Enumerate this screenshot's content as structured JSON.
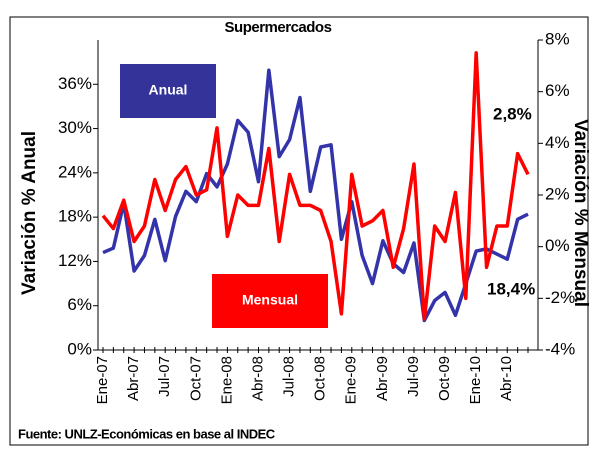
{
  "chart_data": {
    "type": "line",
    "title": "Supermercados",
    "y_label": "Variación % Anual",
    "y2_label": "Variación % Mensual",
    "source": "Fuente: UNLZ-Económicas en base al INDEC",
    "categories": [
      "Ene-07",
      null,
      null,
      "Abr-07",
      null,
      null,
      "Jul-07",
      null,
      null,
      "Oct-07",
      null,
      null,
      "Ene-08",
      null,
      null,
      "Abr-08",
      null,
      null,
      "Jul-08",
      null,
      null,
      "Oct-08",
      null,
      null,
      "Ene-09",
      null,
      null,
      "Abr-09",
      null,
      null,
      "Jul-09",
      null,
      null,
      "Oct-09",
      null,
      null,
      "Ene-10",
      null,
      null,
      "Abr-10",
      null,
      null
    ],
    "series": [
      {
        "name": "Anual",
        "color": "#3333aa",
        "axis": "y",
        "values": [
          13.2,
          13.8,
          19.9,
          10.7,
          12.8,
          17.7,
          12.1,
          18.1,
          21.5,
          20.1,
          23.9,
          22.1,
          25.2,
          31.1,
          29.5,
          22.8,
          37.9,
          26.2,
          28.5,
          34.2,
          21.5,
          27.5,
          27.8,
          15.0,
          20.1,
          12.8,
          9.0,
          14.8,
          11.7,
          10.5,
          14.5,
          4.0,
          6.7,
          7.8,
          4.7,
          9.0,
          13.4,
          13.7,
          13.0,
          12.3,
          17.7,
          18.4
        ]
      },
      {
        "name": "Mensual",
        "color": "#ff0000",
        "axis": "y2",
        "values": [
          1.2,
          0.7,
          1.8,
          0.2,
          0.8,
          2.6,
          1.4,
          2.6,
          3.1,
          2.0,
          2.2,
          4.6,
          0.4,
          2.0,
          1.6,
          1.6,
          3.8,
          0.2,
          2.8,
          1.6,
          1.6,
          1.4,
          0.2,
          -2.6,
          2.8,
          0.8,
          1.0,
          1.4,
          -0.8,
          0.7,
          3.2,
          -2.8,
          0.8,
          0.2,
          2.1,
          -2.0,
          7.5,
          -0.8,
          0.8,
          0.8,
          3.6,
          2.8
        ]
      }
    ],
    "annotations": [
      {
        "text": "2,8%"
      },
      {
        "text": "18,4%"
      }
    ],
    "ylim": [
      0,
      42
    ],
    "yticks": [
      {
        "value": 0,
        "label": "0%"
      },
      {
        "value": 6,
        "label": "6%"
      },
      {
        "value": 12,
        "label": "12%"
      },
      {
        "value": 18,
        "label": "18%"
      },
      {
        "value": 24,
        "label": "24%"
      },
      {
        "value": 30,
        "label": "30%"
      },
      {
        "value": 36,
        "label": "36%"
      }
    ],
    "y2lim": [
      -4,
      8
    ],
    "y2ticks": [
      {
        "value": -4,
        "label": "-4%"
      },
      {
        "value": -2,
        "label": "-2%"
      },
      {
        "value": 0,
        "label": "0%"
      },
      {
        "value": 2,
        "label": "2%"
      },
      {
        "value": 4,
        "label": "4%"
      },
      {
        "value": 6,
        "label": "6%"
      },
      {
        "value": 8,
        "label": "8%"
      }
    ],
    "grid": false
  }
}
